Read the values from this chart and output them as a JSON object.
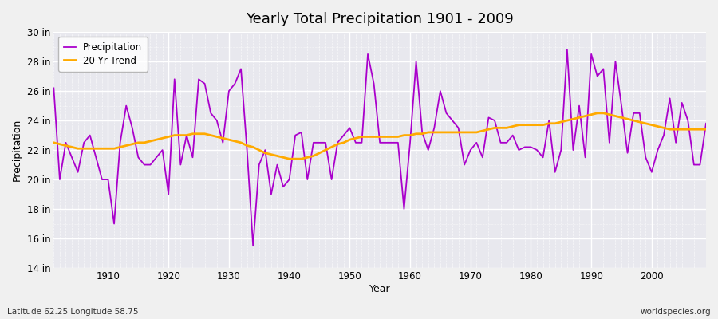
{
  "title": "Yearly Total Precipitation 1901 - 2009",
  "xlabel": "Year",
  "ylabel": "Precipitation",
  "subtitle_left": "Latitude 62.25 Longitude 58.75",
  "subtitle_right": "worldspecies.org",
  "bg_color": "#f0f0f0",
  "plot_bg_color": "#e8e8ee",
  "line_color": "#aa00cc",
  "trend_color": "#ffaa00",
  "ylim": [
    14,
    30
  ],
  "yticks": [
    14,
    16,
    18,
    20,
    22,
    24,
    26,
    28,
    30
  ],
  "ytick_labels": [
    "14 in",
    "16 in",
    "18 in",
    "20 in",
    "22 in",
    "24 in",
    "26 in",
    "28 in",
    "30 in"
  ],
  "xticks": [
    1910,
    1920,
    1930,
    1940,
    1950,
    1960,
    1970,
    1980,
    1990,
    2000
  ],
  "years": [
    1901,
    1902,
    1903,
    1904,
    1905,
    1906,
    1907,
    1908,
    1909,
    1910,
    1911,
    1912,
    1913,
    1914,
    1915,
    1916,
    1917,
    1918,
    1919,
    1920,
    1921,
    1922,
    1923,
    1924,
    1925,
    1926,
    1927,
    1928,
    1929,
    1930,
    1931,
    1932,
    1933,
    1934,
    1935,
    1936,
    1937,
    1938,
    1939,
    1940,
    1941,
    1942,
    1943,
    1944,
    1945,
    1946,
    1947,
    1948,
    1949,
    1950,
    1951,
    1952,
    1953,
    1954,
    1955,
    1956,
    1957,
    1958,
    1959,
    1960,
    1961,
    1962,
    1963,
    1964,
    1965,
    1966,
    1967,
    1968,
    1969,
    1970,
    1971,
    1972,
    1973,
    1974,
    1975,
    1976,
    1977,
    1978,
    1979,
    1980,
    1981,
    1982,
    1983,
    1984,
    1985,
    1986,
    1987,
    1988,
    1989,
    1990,
    1991,
    1992,
    1993,
    1994,
    1995,
    1996,
    1997,
    1998,
    1999,
    2000,
    2001,
    2002,
    2003,
    2004,
    2005,
    2006,
    2007,
    2008,
    2009
  ],
  "precip": [
    26.2,
    20.0,
    22.5,
    21.5,
    20.5,
    22.5,
    23.0,
    21.5,
    20.0,
    20.0,
    17.0,
    22.5,
    25.0,
    23.5,
    21.5,
    21.0,
    21.0,
    21.5,
    22.0,
    19.0,
    26.8,
    21.0,
    23.0,
    21.5,
    26.8,
    26.5,
    24.5,
    24.0,
    22.5,
    26.0,
    26.5,
    27.5,
    22.0,
    15.5,
    21.0,
    22.0,
    19.0,
    21.0,
    19.5,
    20.0,
    23.0,
    23.2,
    20.0,
    22.5,
    22.5,
    22.5,
    20.0,
    22.5,
    23.0,
    23.5,
    22.5,
    22.5,
    28.5,
    26.5,
    22.5,
    22.5,
    22.5,
    22.5,
    18.0,
    22.5,
    28.0,
    23.2,
    22.0,
    23.5,
    26.0,
    24.5,
    24.0,
    23.5,
    21.0,
    22.0,
    22.5,
    21.5,
    24.2,
    24.0,
    22.5,
    22.5,
    23.0,
    22.0,
    22.2,
    22.2,
    22.0,
    21.5,
    24.0,
    20.5,
    22.0,
    28.8,
    22.0,
    25.0,
    21.5,
    28.5,
    27.0,
    27.5,
    22.5,
    28.0,
    25.0,
    21.8,
    24.5,
    24.5,
    21.5,
    20.5,
    22.0,
    23.0,
    25.5,
    22.5,
    25.2,
    24.0,
    21.0,
    21.0,
    23.8
  ],
  "trend": [
    22.5,
    22.4,
    22.3,
    22.2,
    22.1,
    22.1,
    22.1,
    22.1,
    22.1,
    22.1,
    22.1,
    22.2,
    22.3,
    22.4,
    22.5,
    22.5,
    22.6,
    22.7,
    22.8,
    22.9,
    23.0,
    23.0,
    23.0,
    23.1,
    23.1,
    23.1,
    23.0,
    22.9,
    22.8,
    22.7,
    22.6,
    22.5,
    22.3,
    22.2,
    22.0,
    21.8,
    21.7,
    21.6,
    21.5,
    21.4,
    21.4,
    21.4,
    21.5,
    21.6,
    21.8,
    22.0,
    22.2,
    22.4,
    22.5,
    22.7,
    22.8,
    22.9,
    22.9,
    22.9,
    22.9,
    22.9,
    22.9,
    22.9,
    23.0,
    23.0,
    23.1,
    23.1,
    23.2,
    23.2,
    23.2,
    23.2,
    23.2,
    23.2,
    23.2,
    23.2,
    23.2,
    23.3,
    23.4,
    23.5,
    23.5,
    23.5,
    23.6,
    23.7,
    23.7,
    23.7,
    23.7,
    23.7,
    23.8,
    23.8,
    23.9,
    24.0,
    24.1,
    24.2,
    24.3,
    24.4,
    24.5,
    24.5,
    24.4,
    24.3,
    24.2,
    24.1,
    24.0,
    23.9,
    23.8,
    23.7,
    23.6,
    23.5,
    23.4,
    23.4,
    23.4,
    23.4,
    23.4,
    23.4,
    23.4
  ]
}
